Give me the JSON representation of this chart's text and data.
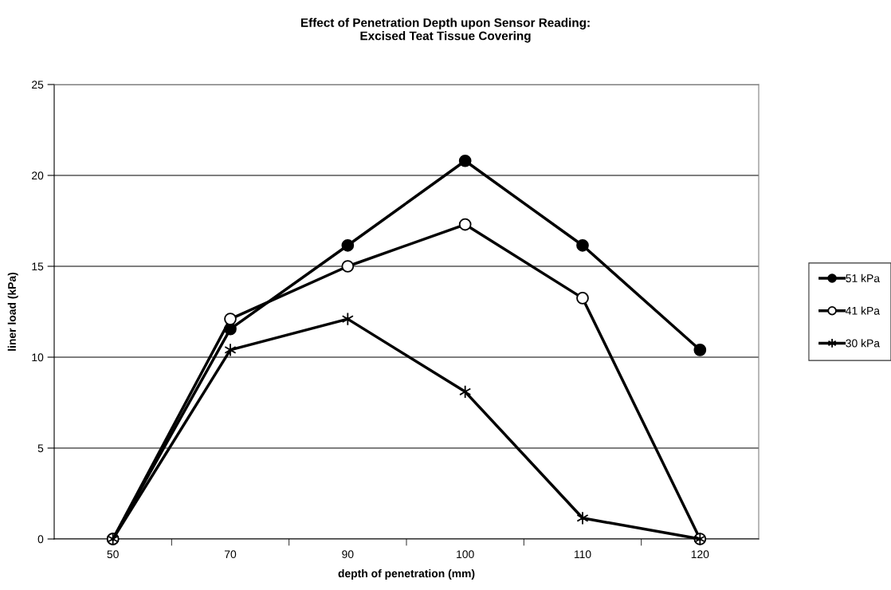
{
  "chart_data": {
    "type": "line",
    "title": "Effect of Penetration Depth upon Sensor Reading:\nExcised Teat Tissue Covering",
    "xlabel": "depth of penetration (mm)",
    "ylabel": "liner load (kPa)",
    "categories": [
      "50",
      "70",
      "90",
      "100",
      "110",
      "120"
    ],
    "series": [
      {
        "name": "51 kPa",
        "color": "#000000",
        "marker": "circle",
        "values": [
          0,
          11.55,
          16.15,
          20.8,
          16.15,
          10.4
        ]
      },
      {
        "name": "41 kPa",
        "color": "#000000",
        "marker": "circle",
        "values": [
          0,
          12.1,
          15.0,
          17.3,
          13.25,
          0
        ]
      },
      {
        "name": "30 kPa",
        "color": "#000000",
        "marker": "cross",
        "values": [
          0,
          10.4,
          12.1,
          8.1,
          1.15,
          0
        ]
      }
    ],
    "ylim": [
      0,
      25
    ],
    "yticks": [
      0,
      5,
      10,
      15,
      20,
      25
    ],
    "grid": "y",
    "legend": "right",
    "line_style": "solid"
  }
}
